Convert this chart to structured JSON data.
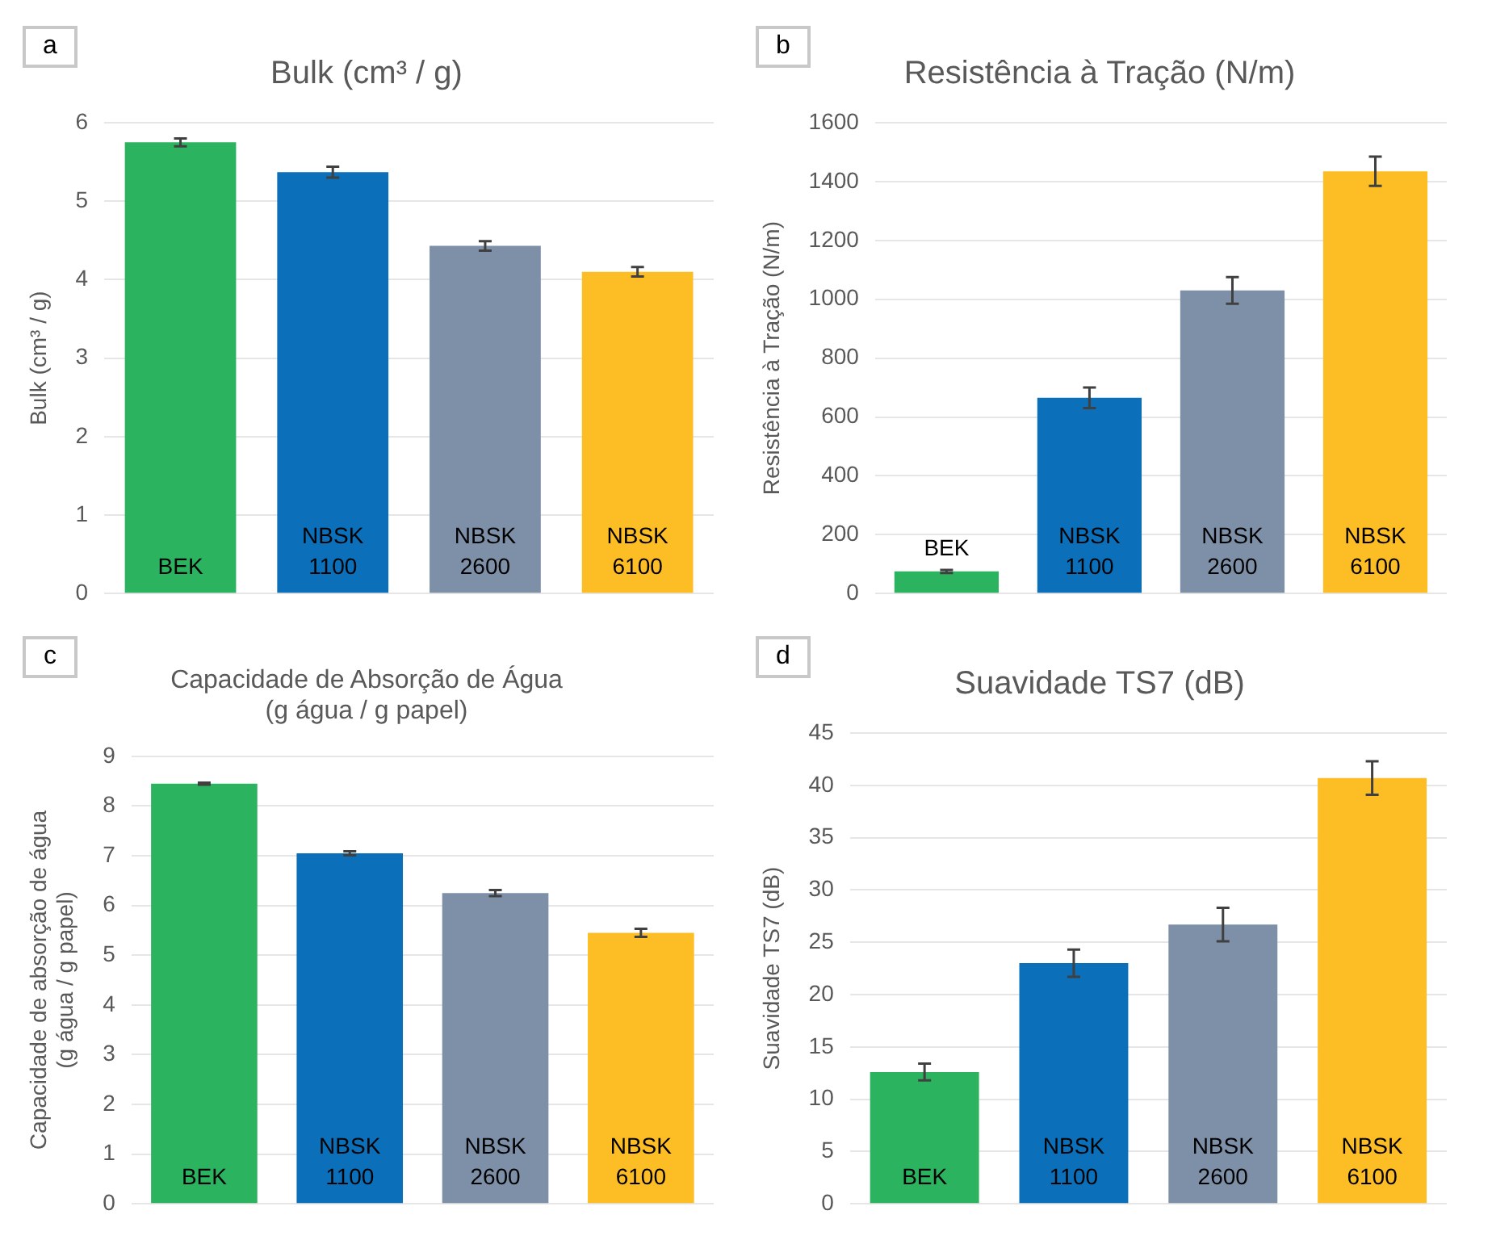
{
  "chart_data": [
    {
      "type": "bar",
      "title": "Bulk (cm³ / g)",
      "ylabel": "Bulk (cm³ / g)",
      "annotations": [
        "a"
      ],
      "categories": [
        "BEK",
        "NBSK 1100",
        "NBSK 2600",
        "NBSK 6100"
      ],
      "values": [
        5.75,
        5.37,
        4.43,
        4.1
      ],
      "errors": [
        0.05,
        0.07,
        0.06,
        0.06
      ],
      "colors": [
        "#2bb35f",
        "#0b6fba",
        "#7d90a8",
        "#fdbd25"
      ],
      "ylim": [
        0,
        6
      ],
      "yticks": [
        0,
        1,
        2,
        3,
        4,
        5,
        6
      ],
      "grid": "y"
    },
    {
      "type": "bar",
      "title": "Resistência à Tração (N/m)",
      "ylabel": "Resistência à Tração (N/m)",
      "annotations": [
        "b"
      ],
      "categories": [
        "BEK",
        "NBSK 1100",
        "NBSK 2600",
        "NBSK 6100"
      ],
      "values": [
        75,
        665,
        1030,
        1435
      ],
      "errors": [
        5,
        35,
        45,
        50
      ],
      "colors": [
        "#2bb35f",
        "#0b6fba",
        "#7d90a8",
        "#fdbd25"
      ],
      "ylim": [
        0,
        1600
      ],
      "yticks": [
        0,
        200,
        400,
        600,
        800,
        1000,
        1200,
        1400,
        1600
      ],
      "grid": "y"
    },
    {
      "type": "bar",
      "title": "Capacidade de Absorção de Água\n(g água / g papel)",
      "ylabel": "Capacidade de absorção de água\n(g água / g papel)",
      "annotations": [
        "c"
      ],
      "categories": [
        "BEK",
        "NBSK 1100",
        "NBSK 2600",
        "NBSK 6100"
      ],
      "values": [
        8.45,
        7.05,
        6.25,
        5.45
      ],
      "errors": [
        0.02,
        0.04,
        0.06,
        0.08
      ],
      "colors": [
        "#2bb35f",
        "#0b6fba",
        "#7d90a8",
        "#fdbd25"
      ],
      "ylim": [
        0,
        9
      ],
      "yticks": [
        0,
        1,
        2,
        3,
        4,
        5,
        6,
        7,
        8,
        9
      ],
      "grid": "y"
    },
    {
      "type": "bar",
      "title": "Suavidade TS7 (dB)",
      "ylabel": "Suavidade TS7 (dB)",
      "annotations": [
        "d"
      ],
      "categories": [
        "BEK",
        "NBSK 1100",
        "NBSK 2600",
        "NBSK 6100"
      ],
      "values": [
        12.6,
        23,
        26.7,
        40.7
      ],
      "errors": [
        0.8,
        1.3,
        1.6,
        1.6
      ],
      "colors": [
        "#2bb35f",
        "#0b6fba",
        "#7d90a8",
        "#fdbd25"
      ],
      "ylim": [
        0,
        45
      ],
      "yticks": [
        0,
        5,
        10,
        15,
        20,
        25,
        30,
        35,
        40,
        45
      ],
      "grid": "y"
    }
  ]
}
